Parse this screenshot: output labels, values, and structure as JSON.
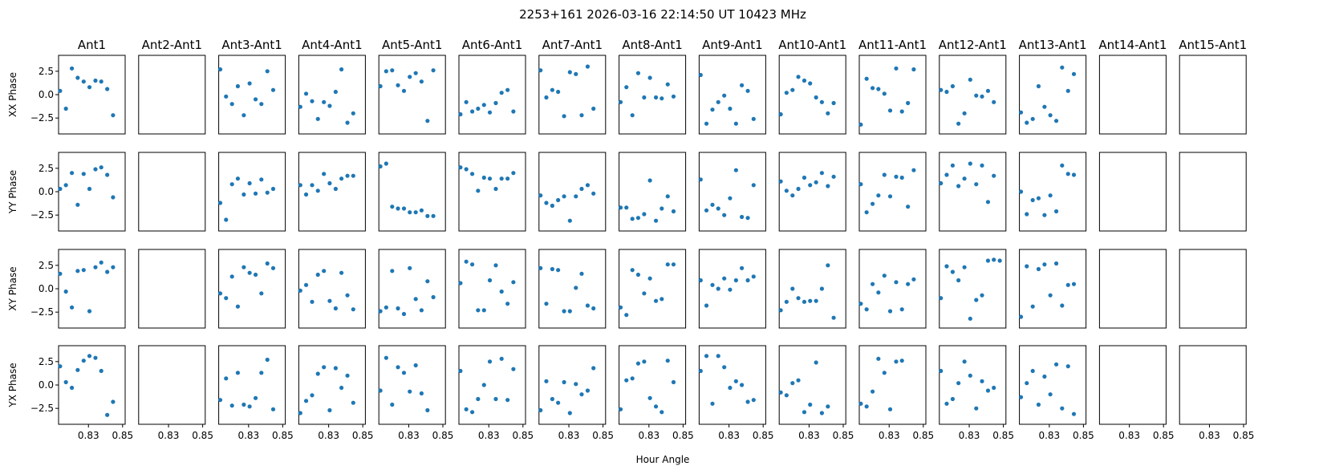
{
  "chart_data": {
    "type": "scatter",
    "title": "2253+161  2026-03-16 22:14:50 UT  10423 MHz",
    "xlabel": "Hour Angle",
    "columns": [
      "Ant1",
      "Ant2-Ant1",
      "Ant3-Ant1",
      "Ant4-Ant1",
      "Ant5-Ant1",
      "Ant6-Ant1",
      "Ant7-Ant1",
      "Ant8-Ant1",
      "Ant9-Ant1",
      "Ant10-Ant1",
      "Ant11-Ant1",
      "Ant12-Ant1",
      "Ant13-Ant1",
      "Ant14-Ant1",
      "Ant15-Ant1"
    ],
    "rows": [
      "XX Phase",
      "YY Phase",
      "XY Phase",
      "YX Phase"
    ],
    "xlim": [
      0.8125,
      0.8515
    ],
    "ylim": [
      -4.2,
      4.2
    ],
    "xticks": [
      0.83,
      0.85
    ],
    "xtick_labels": [
      "0.83",
      "0.85"
    ],
    "yticks": [
      2.5,
      0.0,
      -2.5
    ],
    "ytick_labels": [
      "2.5",
      "0.0",
      "−2.5"
    ],
    "grid": false,
    "marker_color": "#1f77b4",
    "x": [
      0.8134,
      0.8168,
      0.8203,
      0.8237,
      0.8272,
      0.8306,
      0.8341,
      0.8375,
      0.841,
      0.8444,
      0.8479
    ],
    "series": [
      [
        [
          0.4,
          -1.5,
          2.8,
          1.8,
          1.4,
          0.8,
          1.5,
          1.4,
          0.6,
          -2.2
        ],
        [],
        [
          2.7,
          -0.2,
          -1.0,
          0.9,
          -2.2,
          1.2,
          -0.5,
          -1.0,
          2.5,
          0.5
        ],
        [
          -1.3,
          0.1,
          -0.7,
          -2.6,
          -0.8,
          -1.2,
          0.3,
          2.7,
          -3.0,
          -2.0
        ],
        [
          0.9,
          2.5,
          2.6,
          1.0,
          0.4,
          1.9,
          2.3,
          1.4,
          -2.8,
          2.6
        ],
        [
          -2.1,
          -0.8,
          -1.8,
          -1.5,
          -1.1,
          -1.9,
          -0.9,
          0.2,
          0.5,
          -1.8
        ],
        [
          2.6,
          -0.3,
          0.5,
          0.3,
          -2.3,
          2.4,
          2.2,
          -2.2,
          3.0,
          -1.5
        ],
        [
          -0.8,
          0.8,
          -2.2,
          2.3,
          -0.3,
          1.8,
          -0.3,
          -0.4,
          1.1,
          -0.2
        ],
        [
          2.1,
          -3.1,
          -1.6,
          -0.8,
          -0.1,
          -1.5,
          -3.1,
          1.0,
          0.4,
          -2.6
        ],
        [
          -2.1,
          0.2,
          0.5,
          1.9,
          1.5,
          1.2,
          -0.3,
          -0.8,
          -2.0,
          -0.9
        ],
        [
          -3.2,
          1.7,
          0.7,
          0.6,
          0.1,
          -1.7,
          2.8,
          -1.8,
          -0.9,
          2.7
        ],
        [
          0.5,
          0.3,
          0.9,
          -3.1,
          -2.0,
          1.6,
          -0.1,
          -0.2,
          0.4,
          -0.8
        ],
        [
          -1.9,
          -3.0,
          -2.6,
          0.9,
          -1.3,
          -2.2,
          -2.8,
          2.9,
          0.4,
          2.2
        ],
        [],
        []
      ],
      [
        [
          0.3,
          0.7,
          2.0,
          -1.4,
          1.9,
          0.3,
          2.4,
          2.6,
          1.8,
          -0.6
        ],
        [],
        [
          -1.2,
          -3.0,
          0.8,
          1.4,
          -0.3,
          0.9,
          -0.2,
          1.3,
          -0.1,
          0.3
        ],
        [
          0.7,
          -0.3,
          0.7,
          0.1,
          1.9,
          0.9,
          0.3,
          1.4,
          1.7,
          1.7
        ],
        [
          2.7,
          3.0,
          -1.6,
          -1.8,
          -1.8,
          -2.2,
          -2.2,
          -2.0,
          -2.6,
          -2.6
        ],
        [
          2.6,
          2.4,
          1.9,
          0.1,
          1.5,
          1.4,
          0.3,
          1.4,
          1.4,
          2.0
        ],
        [
          -0.4,
          -1.2,
          -1.5,
          -0.9,
          -0.5,
          -3.1,
          -0.5,
          0.3,
          0.7,
          -0.2
        ],
        [
          -1.7,
          -1.7,
          -2.9,
          -2.8,
          -2.4,
          1.2,
          -3.1,
          -1.8,
          -0.5,
          -2.1
        ],
        [
          1.3,
          -2.0,
          -1.4,
          -1.8,
          -2.5,
          -0.7,
          2.3,
          -2.7,
          -2.8,
          0.7
        ],
        [
          1.1,
          0.1,
          -0.4,
          0.3,
          1.5,
          0.7,
          1.0,
          2.0,
          0.6,
          1.6
        ],
        [
          0.8,
          -2.2,
          -1.3,
          -0.4,
          1.8,
          -0.5,
          1.6,
          1.5,
          -1.6,
          2.3
        ],
        [
          0.9,
          1.8,
          2.8,
          0.6,
          1.4,
          3.0,
          0.8,
          2.8,
          -1.1,
          1.7
        ],
        [
          -0.0,
          -2.4,
          -0.9,
          -0.7,
          -2.5,
          -0.4,
          -2.1,
          2.8,
          1.9,
          1.8
        ],
        [],
        []
      ],
      [
        [
          1.6,
          -0.3,
          -2.0,
          1.9,
          2.0,
          -2.4,
          2.3,
          2.8,
          1.8,
          2.3
        ],
        [],
        [
          -0.5,
          -1.0,
          1.3,
          -1.9,
          2.3,
          1.7,
          1.5,
          -0.5,
          2.7,
          2.2
        ],
        [
          -0.2,
          0.4,
          -1.4,
          1.5,
          1.9,
          -1.3,
          -2.1,
          1.7,
          -0.7,
          -2.2
        ],
        [
          -2.4,
          -2.0,
          1.9,
          -2.1,
          -2.7,
          2.2,
          -1.1,
          -2.3,
          0.8,
          -0.9
        ],
        [
          0.6,
          2.9,
          2.6,
          -2.3,
          -2.3,
          0.9,
          2.5,
          -0.3,
          -1.6,
          0.7
        ],
        [
          2.2,
          -1.6,
          2.1,
          2.0,
          -2.4,
          -2.4,
          0.1,
          1.6,
          -1.8,
          -2.1
        ],
        [
          -2.0,
          -2.8,
          2.0,
          1.5,
          -0.5,
          1.1,
          -1.3,
          -1.1,
          2.6,
          2.6
        ],
        [
          0.9,
          -1.8,
          0.4,
          -0.0,
          1.1,
          -0.1,
          0.9,
          2.2,
          0.9,
          1.3
        ],
        [
          -2.3,
          -1.4,
          -0.0,
          -1.0,
          -1.4,
          -1.3,
          -1.3,
          -0.0,
          2.5,
          -3.1
        ],
        [
          -1.6,
          -2.2,
          0.5,
          -0.4,
          1.4,
          -2.4,
          0.7,
          -2.2,
          0.5,
          1.0
        ],
        [
          -1.0,
          2.4,
          1.8,
          0.9,
          2.3,
          -3.2,
          -1.2,
          -0.7,
          3.0,
          3.1,
          3.0
        ],
        [
          -3.0,
          2.4,
          -1.9,
          2.1,
          2.6,
          -0.7,
          2.7,
          -1.8,
          0.4,
          0.5
        ],
        [],
        []
      ],
      [
        [
          2.0,
          0.3,
          -0.3,
          1.6,
          2.6,
          3.1,
          2.9,
          1.5,
          -3.2,
          -1.8
        ],
        [],
        [
          -1.6,
          0.7,
          -2.2,
          1.3,
          -2.1,
          -2.3,
          -1.4,
          1.3,
          2.7,
          -2.6
        ],
        [
          -3.0,
          -1.7,
          -1.1,
          1.2,
          1.9,
          -2.7,
          1.8,
          -0.3,
          1.0,
          -1.9
        ],
        [
          -0.6,
          2.9,
          -2.1,
          1.9,
          1.3,
          -0.7,
          2.1,
          -0.9,
          -2.7
        ],
        [
          1.5,
          -2.6,
          -2.9,
          -1.5,
          0.0,
          2.5,
          -1.5,
          2.8,
          -1.6,
          1.7
        ],
        [
          -2.7,
          0.4,
          -1.5,
          -1.9,
          0.3,
          -3.0,
          0.1,
          -1.0,
          -0.6,
          1.8
        ],
        [
          -2.6,
          0.5,
          0.7,
          2.3,
          2.5,
          -1.4,
          -2.3,
          -2.9,
          2.6,
          0.3
        ],
        [
          1.5,
          3.1,
          -2.0,
          3.1,
          1.9,
          -0.3,
          0.4,
          0.0,
          -1.8,
          -1.6
        ],
        [
          -0.8,
          -1.1,
          0.2,
          0.5,
          -2.9,
          -2.1,
          2.4,
          -3.0,
          -2.3
        ],
        [
          -2.0,
          -2.3,
          -0.7,
          2.8,
          1.3,
          -2.6,
          2.5,
          2.6
        ],
        [
          1.5,
          -2.0,
          -1.5,
          0.2,
          2.5,
          1.0,
          -2.5,
          0.4,
          -0.6,
          -0.3
        ],
        [
          -1.3,
          0.2,
          1.5,
          -2.1,
          0.9,
          -1.0,
          2.2,
          -2.5,
          2.0,
          -3.1
        ],
        [],
        []
      ]
    ]
  }
}
